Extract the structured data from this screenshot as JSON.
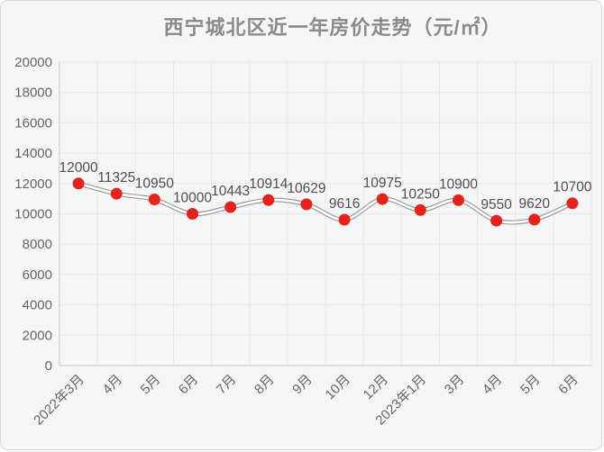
{
  "chart_data": {
    "type": "line",
    "title": "西宁城北区近一年房价走势（元/㎡）",
    "categories": [
      "2022年3月",
      "4月",
      "5月",
      "6月",
      "7月",
      "8月",
      "9月",
      "10月",
      "12月",
      "2023年1月",
      "3月",
      "4月",
      "5月",
      "6月"
    ],
    "values": [
      12000,
      11325,
      10950,
      10000,
      10443,
      10914,
      10629,
      9616,
      10975,
      10250,
      10900,
      9550,
      9620,
      10700
    ],
    "xlabel": "",
    "ylabel": "",
    "ylim": [
      0,
      20000
    ],
    "yticks": [
      0,
      2000,
      4000,
      6000,
      8000,
      10000,
      12000,
      14000,
      16000,
      18000,
      20000
    ],
    "grid": true,
    "smooth": true,
    "legend": "none",
    "x_label_rotation": 45,
    "colors": {
      "point": "#e8221b",
      "line_outer": "#9b9b9b",
      "line_inner": "#ffffff",
      "value_label": "#4f4f4f",
      "axis_label": "#666666",
      "grid_line": "#e7e8ea",
      "axis_line": "#c6c8cb",
      "title": "#8a8a8a",
      "background": "#f5f6f7",
      "card_border": "#d9d9d9"
    }
  }
}
